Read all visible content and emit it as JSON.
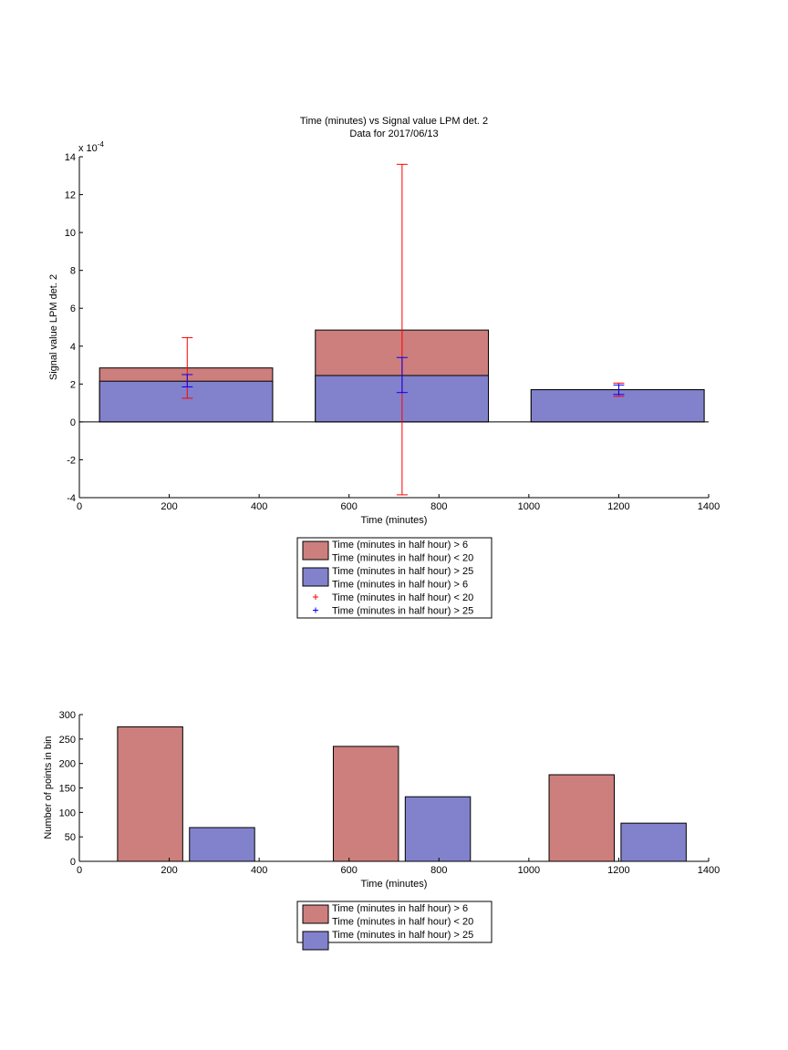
{
  "colors": {
    "red_bar": "#cc7f7d",
    "blue_bar": "#8282cc",
    "red_err": "#ff0000",
    "blue_err": "#0000ff",
    "axis": "#000000"
  },
  "chart_data": [
    {
      "type": "bar",
      "title": "Time (minutes) vs Signal value LPM det. 2",
      "subtitle": "Data for 2017/06/13",
      "xlabel": "Time (minutes)",
      "ylabel": "Signal value LPM det. 2",
      "y_exponent_label": "x 10",
      "y_exponent_power": "-4",
      "xlim": [
        0,
        1400
      ],
      "ylim": [
        -4,
        14
      ],
      "xticks": [
        "0",
        "200",
        "400",
        "600",
        "800",
        "1000",
        "1200",
        "1400"
      ],
      "yticks": [
        "-4",
        "-2",
        "0",
        "2",
        "4",
        "6",
        "8",
        "10",
        "12",
        "14"
      ],
      "grid": false,
      "bars": [
        {
          "x_start": 45,
          "x_end": 430,
          "red_value": 2.85,
          "blue_value": 2.15
        },
        {
          "x_start": 525,
          "x_end": 910,
          "red_value": 4.85,
          "blue_value": 2.45
        },
        {
          "x_start": 1005,
          "x_end": 1390,
          "red_value": 1.7,
          "blue_value": 1.7
        }
      ],
      "error_bars": [
        {
          "series": "red",
          "x": 240,
          "low": 1.25,
          "high": 4.45
        },
        {
          "series": "blue",
          "x": 240,
          "low": 1.85,
          "high": 2.5
        },
        {
          "series": "red",
          "x": 718,
          "low": -3.85,
          "high": 13.6
        },
        {
          "series": "blue",
          "x": 718,
          "low": 1.55,
          "high": 3.4
        },
        {
          "series": "red",
          "x": 1200,
          "low": 1.35,
          "high": 2.05
        },
        {
          "series": "blue",
          "x": 1200,
          "low": 1.45,
          "high": 1.95
        }
      ],
      "legend_position": "below",
      "legend": [
        {
          "kind": "patch",
          "series": "red",
          "label": "Time (minutes in half hour) > 6"
        },
        {
          "kind": "text",
          "label": "Time (minutes in half hour) < 20"
        },
        {
          "kind": "patch",
          "series": "blue",
          "label": "Time (minutes in half hour) > 25"
        },
        {
          "kind": "text",
          "label": "Time (minutes in half hour) > 6"
        },
        {
          "kind": "marker",
          "series": "red",
          "label": "Time (minutes in half hour) < 20"
        },
        {
          "kind": "marker",
          "series": "blue",
          "label": "Time (minutes in half hour) > 25"
        }
      ]
    },
    {
      "type": "bar",
      "xlabel": "Time (minutes)",
      "ylabel": "Number of points in bin",
      "xlim": [
        0,
        1400
      ],
      "ylim": [
        0,
        300
      ],
      "xticks": [
        "0",
        "200",
        "400",
        "600",
        "800",
        "1000",
        "1200",
        "1400"
      ],
      "yticks": [
        "0",
        "50",
        "100",
        "150",
        "200",
        "250",
        "300"
      ],
      "grid": false,
      "bars": [
        {
          "series": "red",
          "x_start": 85,
          "x_end": 230,
          "value": 275
        },
        {
          "series": "blue",
          "x_start": 245,
          "x_end": 390,
          "value": 69
        },
        {
          "series": "red",
          "x_start": 565,
          "x_end": 710,
          "value": 235
        },
        {
          "series": "blue",
          "x_start": 725,
          "x_end": 870,
          "value": 132
        },
        {
          "series": "red",
          "x_start": 1045,
          "x_end": 1190,
          "value": 177
        },
        {
          "series": "blue",
          "x_start": 1205,
          "x_end": 1350,
          "value": 78
        }
      ],
      "legend_position": "below",
      "legend": [
        {
          "kind": "patch",
          "series": "red",
          "label": "Time (minutes in half hour) > 6"
        },
        {
          "kind": "text",
          "label": "Time (minutes in half hour) < 20"
        },
        {
          "kind": "patch",
          "series": "blue",
          "label": "Time (minutes in half hour) > 25"
        }
      ]
    }
  ]
}
